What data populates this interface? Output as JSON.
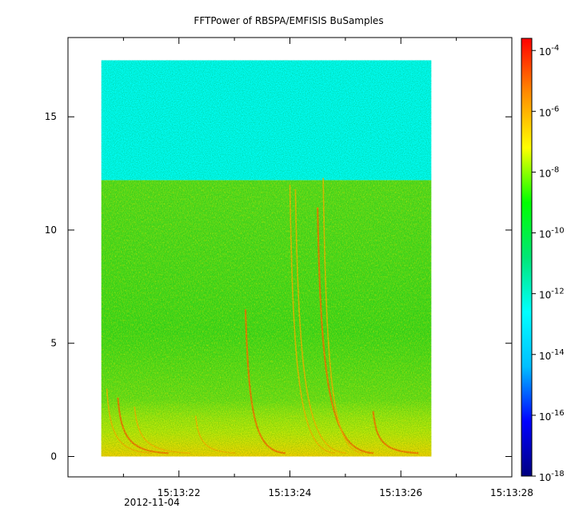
{
  "chart_data": {
    "type": "heatmap",
    "title": "FFTPower of RBSPA/EMFISIS  BuSamples",
    "x_axis": {
      "ticks": [
        {
          "value": 22,
          "label": "15:13:22"
        },
        {
          "value": 24,
          "label": "15:13:24"
        },
        {
          "value": 26,
          "label": "15:13:26"
        },
        {
          "value": 28,
          "label": "15:13:28"
        }
      ],
      "minor_ticks": [
        21,
        23,
        25,
        27
      ],
      "range": [
        20.0,
        28.0
      ],
      "date_label": "2012-11-04"
    },
    "y_axis": {
      "ticks": [
        {
          "value": 0,
          "label": "0"
        },
        {
          "value": 5,
          "label": "5"
        },
        {
          "value": 10,
          "label": "10"
        },
        {
          "value": 15,
          "label": "15"
        }
      ],
      "range": [
        -0.9,
        18.5
      ]
    },
    "data_extent": {
      "x": [
        20.6,
        26.55
      ],
      "y": [
        0,
        17.5
      ]
    },
    "colorbar": {
      "scale": "log",
      "range_exponents": [
        -18,
        -3.6
      ],
      "ticks": [
        {
          "exponent": -4,
          "base": "10",
          "exp": "-4"
        },
        {
          "exponent": -6,
          "base": "10",
          "exp": "-6"
        },
        {
          "exponent": -8,
          "base": "10",
          "exp": "-8"
        },
        {
          "exponent": -10,
          "base": "10",
          "exp": "-10"
        },
        {
          "exponent": -12,
          "base": "10",
          "exp": "-12"
        },
        {
          "exponent": -14,
          "base": "10",
          "exp": "-14"
        },
        {
          "exponent": -16,
          "base": "10",
          "exp": "-16"
        },
        {
          "exponent": -18,
          "base": "10",
          "exp": "-18"
        }
      ],
      "colors": [
        "#000080",
        "#0000ff",
        "#00bfff",
        "#00ffff",
        "#00e676",
        "#00ff00",
        "#ffff00",
        "#ff8c00",
        "#ff0000"
      ]
    },
    "regions": [
      {
        "y": [
          12.2,
          17.5
        ],
        "level_exponent": -12.5,
        "description": "upper band"
      },
      {
        "y": [
          0,
          12.2
        ],
        "level_exponent": -10,
        "description": "main band"
      },
      {
        "y": [
          0,
          2.5
        ],
        "level_exponent": -8,
        "description": "low-frequency enhancement"
      }
    ],
    "dispersive_traces": [
      {
        "x_start": 23.2,
        "y_top": 6.5
      },
      {
        "x_start": 24.0,
        "y_top": 12.0
      },
      {
        "x_start": 24.1,
        "y_top": 11.8
      },
      {
        "x_start": 24.5,
        "y_top": 11.0
      },
      {
        "x_start": 24.6,
        "y_top": 12.3
      },
      {
        "x_start": 20.7,
        "y_top": 3.0
      },
      {
        "x_start": 20.9,
        "y_top": 2.6
      },
      {
        "x_start": 21.2,
        "y_top": 2.2
      },
      {
        "x_start": 22.3,
        "y_top": 1.8
      },
      {
        "x_start": 25.5,
        "y_top": 2.0
      }
    ]
  }
}
